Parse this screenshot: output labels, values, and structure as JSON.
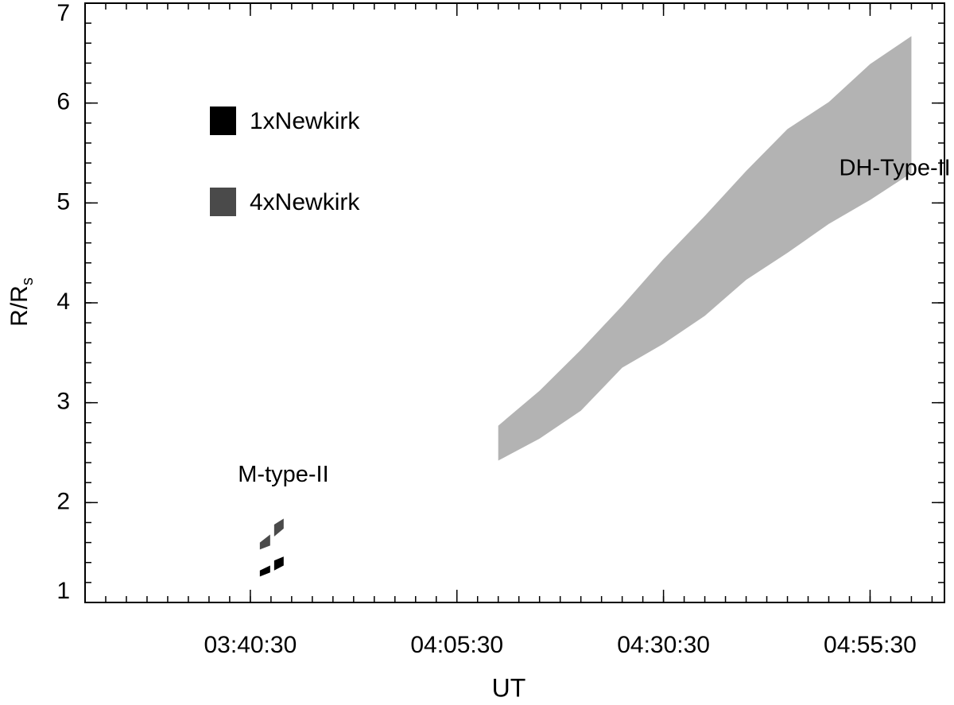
{
  "chart_data": {
    "type": "band",
    "x_label": "UT",
    "y_label": {
      "text": "R/R",
      "subscript": "s"
    },
    "xlim": [
      "03:20:30",
      "05:04:30"
    ],
    "xticks": [
      "03:40:30",
      "04:05:30",
      "04:30:30",
      "04:55:30"
    ],
    "ylim": [
      1,
      7
    ],
    "yticks": [
      1,
      2,
      3,
      4,
      5,
      6,
      7
    ],
    "series": [
      {
        "name": "1xNewkirk",
        "color": "#000000",
        "x": [
          "03:41:39",
          "03:42:54",
          "03:43:08",
          "03:43:23",
          "03:44:32"
        ],
        "lower": [
          1.26,
          1.3,
          null,
          1.32,
          1.37
        ],
        "upper": [
          1.32,
          1.37,
          null,
          1.42,
          1.46
        ]
      },
      {
        "name": "4xNewkirk",
        "color": "#4a4a4a",
        "x": [
          "03:41:39",
          "03:42:54",
          "03:43:08",
          "03:43:23",
          "03:44:32"
        ],
        "lower": [
          1.53,
          1.57,
          null,
          1.66,
          1.74
        ],
        "upper": [
          1.6,
          1.68,
          null,
          1.78,
          1.84
        ]
      },
      {
        "color": "#b3b3b3",
        "x": [
          "04:10:30",
          "04:15:30",
          "04:20:30",
          "04:25:30",
          "04:30:30",
          "04:35:30",
          "04:40:30",
          "04:45:30",
          "04:50:30",
          "04:55:30",
          "05:00:30"
        ],
        "lower": [
          2.42,
          2.64,
          2.92,
          3.35,
          3.59,
          3.87,
          4.23,
          4.5,
          4.79,
          5.03,
          5.3
        ],
        "upper": [
          2.77,
          3.12,
          3.53,
          3.97,
          4.44,
          4.87,
          5.32,
          5.74,
          6.01,
          6.39,
          6.67
        ]
      }
    ],
    "annotations": [
      {
        "text": "M-type-II",
        "x": "03:44:30",
        "y": 2.27
      },
      {
        "text": "DH-Type-II",
        "x": "04:58:30",
        "y": 5.34
      }
    ]
  }
}
